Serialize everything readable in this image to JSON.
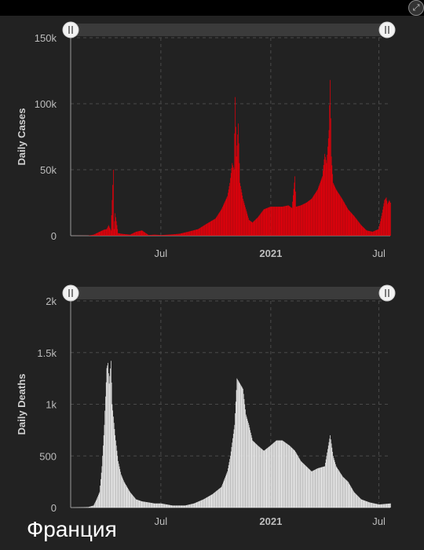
{
  "caption": "Франция",
  "expand_icon": "expand-arrows-icon",
  "colors": {
    "cases": "#e8000b",
    "deaths": "#eeeeee",
    "background": "#222222"
  },
  "chart_data": [
    {
      "type": "bar",
      "ylabel": "Daily Cases",
      "ylim": [
        0,
        150000
      ],
      "yticks": [
        {
          "v": 0,
          "label": "0"
        },
        {
          "v": 50000,
          "label": "50k"
        },
        {
          "v": 100000,
          "label": "100k"
        },
        {
          "v": 150000,
          "label": "150k"
        }
      ],
      "xticks": [
        {
          "date": "2020-07-01",
          "label": "Jul"
        },
        {
          "date": "2021-01-01",
          "label": "2021"
        },
        {
          "date": "2021-07-01",
          "label": "Jul"
        }
      ],
      "x_start": "2020-02-01",
      "x_end": "2021-07-20",
      "grid": true,
      "points": [
        [
          "2020-02-01",
          0
        ],
        [
          "2020-03-01",
          100
        ],
        [
          "2020-03-10",
          800
        ],
        [
          "2020-03-20",
          3000
        ],
        [
          "2020-03-27",
          4500
        ],
        [
          "2020-04-01",
          5000
        ],
        [
          "2020-04-04",
          8000
        ],
        [
          "2020-04-08",
          4000
        ],
        [
          "2020-04-12",
          50000
        ],
        [
          "2020-04-13",
          5000
        ],
        [
          "2020-04-15",
          17000
        ],
        [
          "2020-04-20",
          2000
        ],
        [
          "2020-04-25",
          1500
        ],
        [
          "2020-05-01",
          1200
        ],
        [
          "2020-05-10",
          800
        ],
        [
          "2020-05-20",
          3000
        ],
        [
          "2020-05-30",
          4000
        ],
        [
          "2020-06-10",
          500
        ],
        [
          "2020-06-20",
          800
        ],
        [
          "2020-07-01",
          500
        ],
        [
          "2020-07-20",
          1000
        ],
        [
          "2020-08-01",
          1500
        ],
        [
          "2020-08-15",
          3000
        ],
        [
          "2020-09-01",
          5000
        ],
        [
          "2020-09-15",
          9000
        ],
        [
          "2020-09-30",
          13000
        ],
        [
          "2020-10-10",
          20000
        ],
        [
          "2020-10-20",
          30000
        ],
        [
          "2020-10-24",
          40000
        ],
        [
          "2020-10-28",
          55000
        ],
        [
          "2020-10-31",
          50000
        ],
        [
          "2020-11-02",
          105000
        ],
        [
          "2020-11-04",
          60000
        ],
        [
          "2020-11-07",
          85000
        ],
        [
          "2020-11-10",
          40000
        ],
        [
          "2020-11-15",
          28000
        ],
        [
          "2020-11-25",
          12000
        ],
        [
          "2020-12-01",
          10000
        ],
        [
          "2020-12-10",
          14000
        ],
        [
          "2020-12-20",
          20000
        ],
        [
          "2020-12-31",
          22000
        ],
        [
          "2021-01-10",
          22000
        ],
        [
          "2021-01-20",
          22000
        ],
        [
          "2021-01-30",
          23000
        ],
        [
          "2021-02-05",
          21000
        ],
        [
          "2021-02-10",
          45000
        ],
        [
          "2021-02-12",
          22000
        ],
        [
          "2021-02-20",
          23000
        ],
        [
          "2021-03-01",
          25000
        ],
        [
          "2021-03-10",
          28000
        ],
        [
          "2021-03-20",
          35000
        ],
        [
          "2021-03-28",
          45000
        ],
        [
          "2021-04-01",
          62000
        ],
        [
          "2021-04-04",
          55000
        ],
        [
          "2021-04-08",
          80000
        ],
        [
          "2021-04-10",
          118000
        ],
        [
          "2021-04-12",
          60000
        ],
        [
          "2021-04-15",
          40000
        ],
        [
          "2021-04-20",
          35000
        ],
        [
          "2021-04-30",
          28000
        ],
        [
          "2021-05-10",
          20000
        ],
        [
          "2021-05-20",
          15000
        ],
        [
          "2021-06-01",
          8000
        ],
        [
          "2021-06-10",
          4000
        ],
        [
          "2021-06-20",
          3000
        ],
        [
          "2021-06-30",
          5000
        ],
        [
          "2021-07-05",
          15000
        ],
        [
          "2021-07-10",
          27000
        ],
        [
          "2021-07-13",
          29000
        ],
        [
          "2021-07-15",
          24000
        ],
        [
          "2021-07-18",
          27000
        ],
        [
          "2021-07-20",
          25000
        ]
      ]
    },
    {
      "type": "bar",
      "ylabel": "Daily Deaths",
      "ylim": [
        0,
        2000
      ],
      "yticks": [
        {
          "v": 0,
          "label": "0"
        },
        {
          "v": 500,
          "label": "500"
        },
        {
          "v": 1000,
          "label": "1k"
        },
        {
          "v": 1500,
          "label": "1.5k"
        },
        {
          "v": 2000,
          "label": "2k"
        }
      ],
      "xticks": [
        {
          "date": "2020-07-01",
          "label": "Jul"
        },
        {
          "date": "2021-01-01",
          "label": "2021"
        },
        {
          "date": "2021-07-01",
          "label": "Jul"
        }
      ],
      "x_start": "2020-02-01",
      "x_end": "2021-07-20",
      "grid": true,
      "points": [
        [
          "2020-02-01",
          0
        ],
        [
          "2020-03-01",
          5
        ],
        [
          "2020-03-10",
          20
        ],
        [
          "2020-03-15",
          80
        ],
        [
          "2020-03-20",
          150
        ],
        [
          "2020-03-24",
          400
        ],
        [
          "2020-03-28",
          800
        ],
        [
          "2020-04-01",
          1350
        ],
        [
          "2020-04-03",
          1400
        ],
        [
          "2020-04-05",
          1200
        ],
        [
          "2020-04-08",
          1420
        ],
        [
          "2020-04-10",
          1000
        ],
        [
          "2020-04-15",
          700
        ],
        [
          "2020-04-20",
          450
        ],
        [
          "2020-04-25",
          320
        ],
        [
          "2020-04-30",
          250
        ],
        [
          "2020-05-05",
          200
        ],
        [
          "2020-05-10",
          150
        ],
        [
          "2020-05-20",
          80
        ],
        [
          "2020-05-30",
          60
        ],
        [
          "2020-06-10",
          50
        ],
        [
          "2020-06-20",
          40
        ],
        [
          "2020-07-01",
          40
        ],
        [
          "2020-07-20",
          20
        ],
        [
          "2020-08-10",
          20
        ],
        [
          "2020-08-25",
          40
        ],
        [
          "2020-09-10",
          80
        ],
        [
          "2020-09-25",
          130
        ],
        [
          "2020-10-10",
          200
        ],
        [
          "2020-10-20",
          350
        ],
        [
          "2020-10-25",
          500
        ],
        [
          "2020-11-01",
          800
        ],
        [
          "2020-11-05",
          1250
        ],
        [
          "2020-11-10",
          1200
        ],
        [
          "2020-11-15",
          1150
        ],
        [
          "2020-11-20",
          900
        ],
        [
          "2020-11-25",
          800
        ],
        [
          "2020-12-01",
          650
        ],
        [
          "2020-12-10",
          600
        ],
        [
          "2020-12-20",
          550
        ],
        [
          "2020-12-31",
          600
        ],
        [
          "2021-01-10",
          650
        ],
        [
          "2021-01-20",
          650
        ],
        [
          "2021-02-01",
          600
        ],
        [
          "2021-02-10",
          550
        ],
        [
          "2021-02-20",
          450
        ],
        [
          "2021-03-01",
          400
        ],
        [
          "2021-03-10",
          350
        ],
        [
          "2021-03-20",
          380
        ],
        [
          "2021-04-01",
          400
        ],
        [
          "2021-04-10",
          700
        ],
        [
          "2021-04-15",
          500
        ],
        [
          "2021-04-20",
          400
        ],
        [
          "2021-05-01",
          300
        ],
        [
          "2021-05-10",
          250
        ],
        [
          "2021-05-20",
          150
        ],
        [
          "2021-06-01",
          80
        ],
        [
          "2021-06-15",
          50
        ],
        [
          "2021-07-01",
          30
        ],
        [
          "2021-07-20",
          40
        ]
      ]
    }
  ]
}
